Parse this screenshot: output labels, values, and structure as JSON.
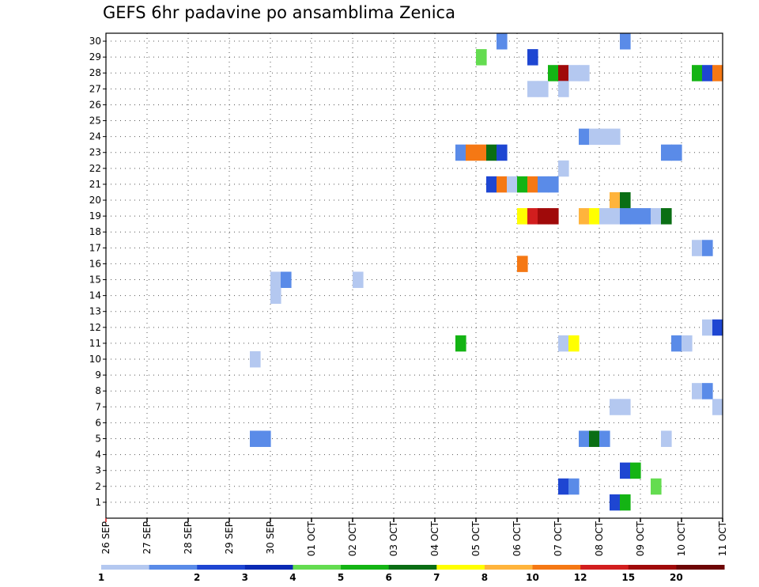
{
  "chart_data": {
    "type": "heatmap",
    "title": "GEFS 6hr padavine po ansamblima Zenica",
    "xlabel": "",
    "ylabel": "",
    "x_ticks": [
      "26 SEP",
      "27 SEP",
      "28 SEP",
      "29 SEP",
      "30 SEP",
      "01 OCT",
      "02 OCT",
      "03 OCT",
      "04 OCT",
      "05 OCT",
      "06 OCT",
      "07 OCT",
      "08 OCT",
      "09 OCT",
      "10 OCT",
      "11 OCT"
    ],
    "x_range_steps_6h": [
      0,
      60
    ],
    "y_ticks": [
      1,
      2,
      3,
      4,
      5,
      6,
      7,
      8,
      9,
      10,
      11,
      12,
      13,
      14,
      15,
      16,
      17,
      18,
      19,
      20,
      21,
      22,
      23,
      24,
      25,
      26,
      27,
      28,
      29,
      30
    ],
    "y_range": [
      0.5,
      30.5
    ],
    "grid": true,
    "colorbar": {
      "labels": [
        "1",
        "2",
        "3",
        "4",
        "5",
        "6",
        "7",
        "8",
        "10",
        "12",
        "15",
        "20"
      ],
      "colors": [
        "#b4c8f0",
        "#5a8be8",
        "#1e46d2",
        "#0a2ab4",
        "#64dc50",
        "#14b414",
        "#0a6e14",
        "#ffff00",
        "#ffb43c",
        "#f57814",
        "#d21e1e",
        "#a00a0a",
        "#6e0505"
      ]
    },
    "cells": [
      {
        "m": 30,
        "s": [
          [
            39,
            1
          ],
          [
            51,
            1
          ]
        ]
      },
      {
        "m": 29,
        "s": [
          [
            37,
            4
          ],
          [
            42,
            2
          ]
        ]
      },
      {
        "m": 28,
        "s": [
          [
            44,
            5
          ],
          [
            45,
            11
          ],
          [
            46,
            0
          ],
          [
            47,
            0
          ],
          [
            58,
            5
          ],
          [
            59,
            2
          ],
          [
            60,
            9
          ]
        ]
      },
      {
        "m": 27,
        "s": [
          [
            42,
            0
          ],
          [
            43,
            0
          ],
          [
            45,
            0
          ]
        ]
      },
      {
        "m": 24,
        "s": [
          [
            47,
            1
          ],
          [
            48,
            0
          ],
          [
            49,
            0
          ],
          [
            50,
            0
          ]
        ]
      },
      {
        "m": 23,
        "s": [
          [
            35,
            1
          ],
          [
            36,
            9
          ],
          [
            37,
            9
          ],
          [
            38,
            6
          ],
          [
            39,
            2
          ],
          [
            55,
            1
          ],
          [
            56,
            1
          ]
        ]
      },
      {
        "m": 22,
        "s": [
          [
            45,
            0
          ]
        ]
      },
      {
        "m": 21,
        "s": [
          [
            38,
            2
          ],
          [
            39,
            9
          ],
          [
            40,
            0
          ],
          [
            41,
            5
          ],
          [
            42,
            9
          ],
          [
            43,
            1
          ],
          [
            44,
            1
          ]
        ]
      },
      {
        "m": 20,
        "s": [
          [
            50,
            8
          ],
          [
            51,
            6
          ]
        ]
      },
      {
        "m": 19,
        "s": [
          [
            41,
            7
          ],
          [
            42,
            10
          ],
          [
            43,
            11
          ],
          [
            44,
            11
          ],
          [
            47,
            8
          ],
          [
            48,
            7
          ],
          [
            49,
            0
          ],
          [
            50,
            0
          ],
          [
            51,
            1
          ],
          [
            52,
            1
          ],
          [
            53,
            1
          ],
          [
            54,
            0
          ],
          [
            55,
            6
          ]
        ]
      },
      {
        "m": 17,
        "s": [
          [
            58,
            0
          ],
          [
            59,
            1
          ]
        ]
      },
      {
        "m": 16,
        "s": [
          [
            41,
            9
          ]
        ]
      },
      {
        "m": 15,
        "s": [
          [
            17,
            0
          ],
          [
            18,
            1
          ],
          [
            25,
            0
          ]
        ]
      },
      {
        "m": 14,
        "s": [
          [
            17,
            0
          ]
        ]
      },
      {
        "m": 12,
        "s": [
          [
            59,
            0
          ],
          [
            60,
            2
          ]
        ]
      },
      {
        "m": 11,
        "s": [
          [
            35,
            5
          ],
          [
            45,
            0
          ],
          [
            46,
            7
          ],
          [
            56,
            1
          ],
          [
            57,
            0
          ]
        ]
      },
      {
        "m": 10,
        "s": [
          [
            15,
            0
          ]
        ]
      },
      {
        "m": 8,
        "s": [
          [
            58,
            0
          ],
          [
            59,
            1
          ]
        ]
      },
      {
        "m": 7,
        "s": [
          [
            50,
            0
          ],
          [
            51,
            0
          ],
          [
            60,
            0
          ]
        ]
      },
      {
        "m": 5,
        "s": [
          [
            15,
            1
          ],
          [
            16,
            1
          ],
          [
            47,
            1
          ],
          [
            48,
            6
          ],
          [
            49,
            1
          ],
          [
            55,
            0
          ]
        ]
      },
      {
        "m": 3,
        "s": [
          [
            51,
            2
          ],
          [
            52,
            5
          ]
        ]
      },
      {
        "m": 2,
        "s": [
          [
            45,
            2
          ],
          [
            46,
            1
          ],
          [
            54,
            4
          ]
        ]
      },
      {
        "m": 1,
        "s": [
          [
            50,
            2
          ],
          [
            51,
            5
          ]
        ]
      }
    ]
  }
}
